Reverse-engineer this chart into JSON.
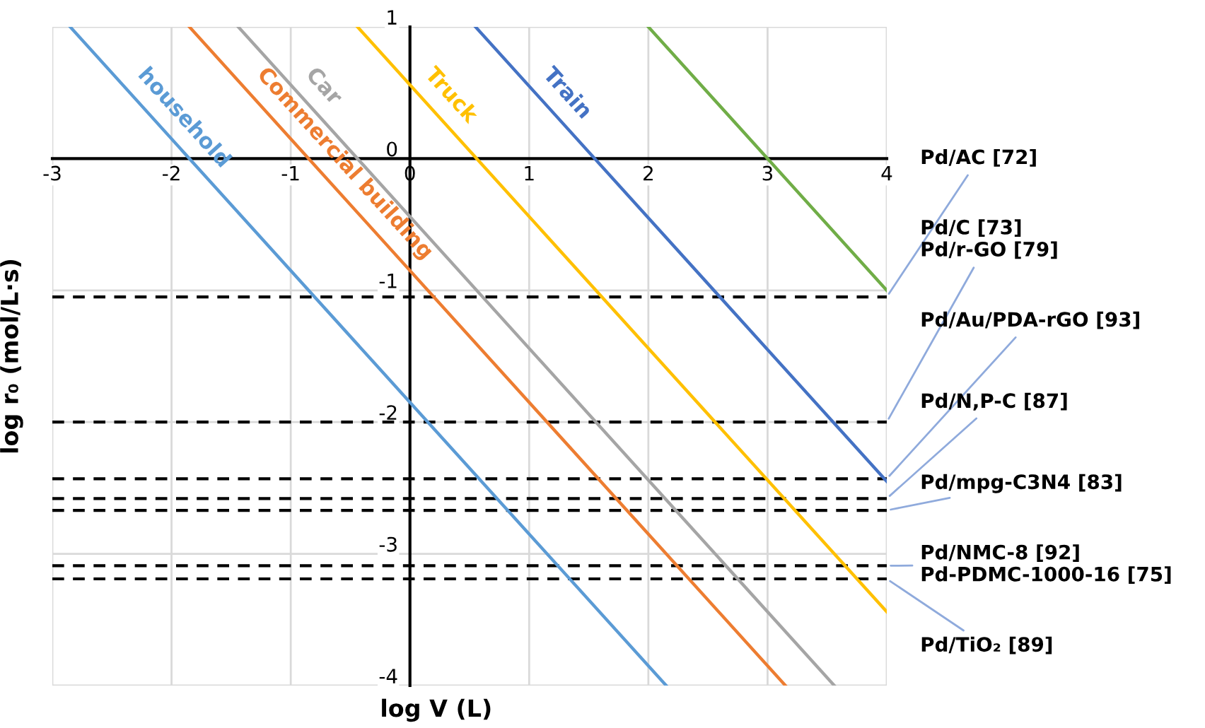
{
  "chart_data": {
    "type": "line",
    "xlabel": "log V (L)",
    "ylabel": "log r₀ (mol/L·s)",
    "xlim": [
      -3,
      4
    ],
    "ylim": [
      -4,
      1
    ],
    "xticks": [
      -3,
      -2,
      -1,
      0,
      1,
      2,
      3,
      4
    ],
    "yticks": [
      -4,
      -3,
      -2,
      -1,
      0,
      1
    ],
    "grid": true,
    "legend": false,
    "marker": "none",
    "line_style": "solid",
    "series": [
      {
        "name": "household",
        "color": "#5b9bd5",
        "x": [
          -2.85,
          2.15
        ],
        "values": [
          1,
          -4
        ]
      },
      {
        "name": "Commercial building",
        "color": "#ed7d31",
        "x": [
          -1.85,
          3.15
        ],
        "values": [
          1,
          -4
        ]
      },
      {
        "name": "Car",
        "color": "#a5a5a5",
        "x": [
          -1.44,
          3.56
        ],
        "values": [
          1,
          -4
        ]
      },
      {
        "name": "Truck",
        "color": "#ffc000",
        "x": [
          -0.44,
          4
        ],
        "values": [
          1,
          -3.44
        ]
      },
      {
        "name": "Train",
        "color": "#4472c4",
        "x": [
          0.55,
          4
        ],
        "values": [
          1,
          -2.45
        ]
      },
      {
        "color": "#70ad47",
        "x": [
          2,
          4
        ],
        "values": [
          1,
          -1
        ]
      }
    ],
    "ref_lines": [
      {
        "axis": "y",
        "value": -1.05,
        "label": "Pd/AC [72]",
        "color": "#000000",
        "line_style": "dashed"
      },
      {
        "axis": "y",
        "value": -2,
        "label": "Pd/C [73]\nPd/r-GO [79]",
        "color": "#000000",
        "line_style": "dashed"
      },
      {
        "axis": "y",
        "value": -2.43,
        "label": "Pd/Au/PDA-rGO [93]",
        "color": "#000000",
        "line_style": "dashed"
      },
      {
        "axis": "y",
        "value": -2.58,
        "label": "Pd/N,P-C [87]",
        "color": "#000000",
        "line_style": "dashed"
      },
      {
        "axis": "y",
        "value": -2.67,
        "label": "Pd/mpg-C3N4 [83]",
        "color": "#000000",
        "line_style": "dashed"
      },
      {
        "axis": "y",
        "value": -3.09,
        "label": "Pd/NMC-8 [92]\nPd-PDMC-1000-16 [75]",
        "color": "#000000",
        "line_style": "dashed"
      },
      {
        "axis": "y",
        "value": -3.19,
        "label": "Pd/TiO₂ [89]",
        "color": "#000000",
        "line_style": "dashed"
      }
    ]
  }
}
